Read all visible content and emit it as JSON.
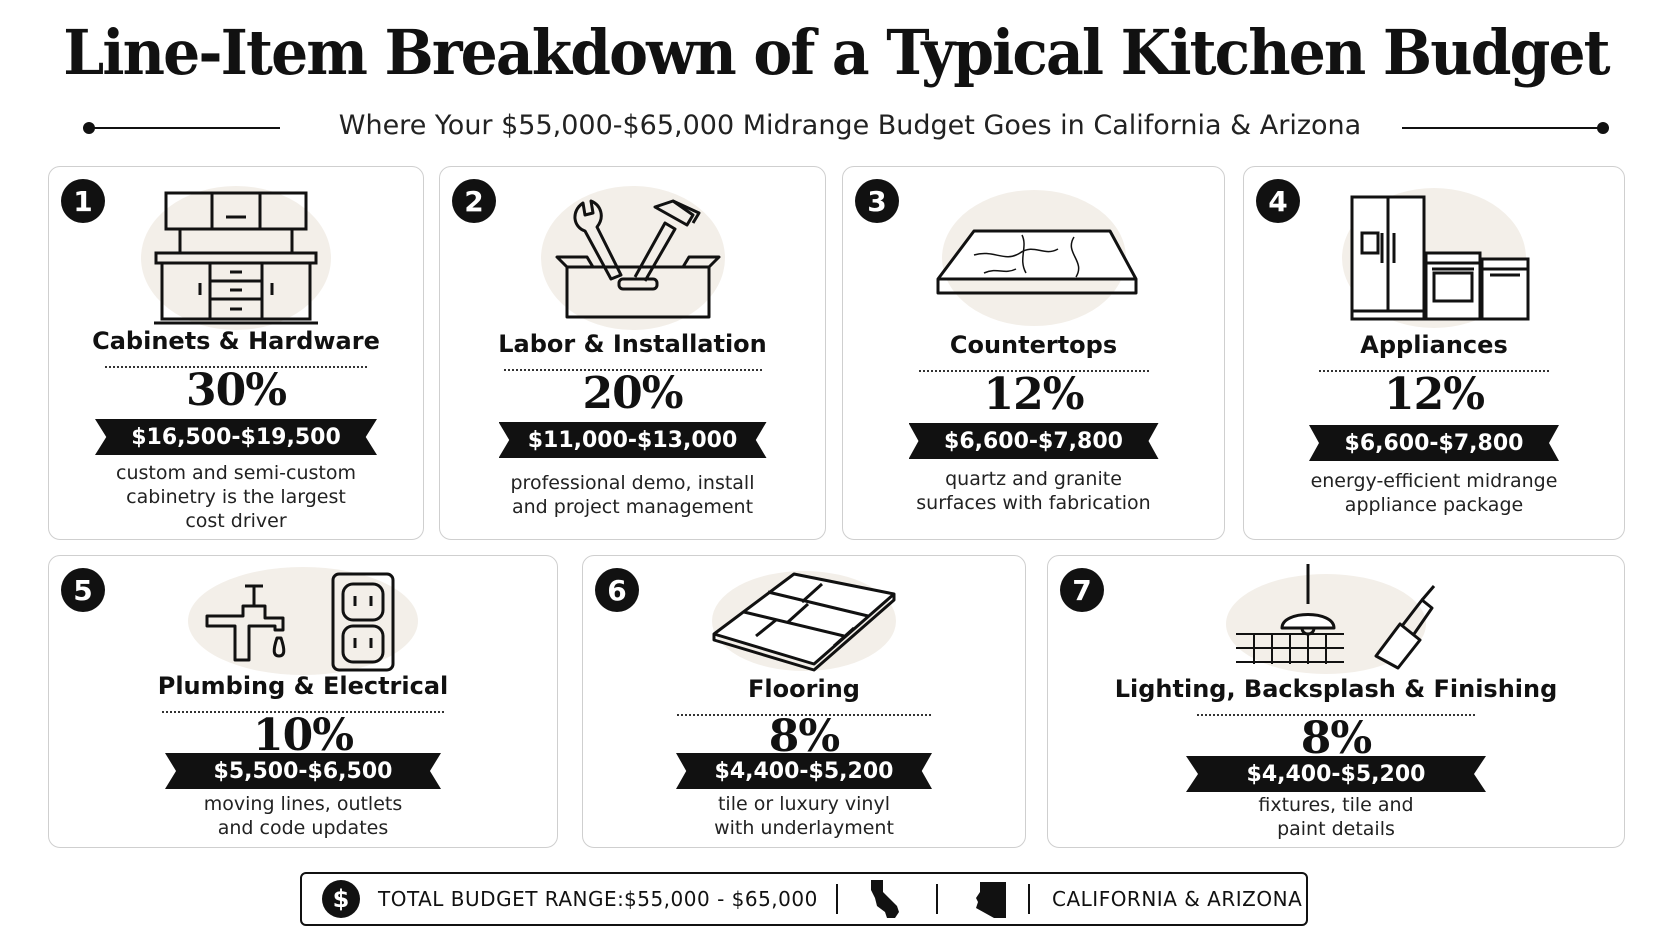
{
  "title": "Line-Item Breakdown of a Typical Kitchen Budget",
  "subtitle": "Where Your $55,000-$65,000 Midrange Budget Goes in California & Arizona",
  "items": [
    {
      "number": "1",
      "name": "Cabinets & Hardware",
      "percent": "30%",
      "range": "$16,500-$19,500",
      "description": "custom and semi-custom\ncabinetry is the largest\ncost driver",
      "icon": "cabinets-icon"
    },
    {
      "number": "2",
      "name": "Labor & Installation",
      "percent": "20%",
      "range": "$11,000-$13,000",
      "description": "professional demo, install\nand project management",
      "icon": "toolbox-icon"
    },
    {
      "number": "3",
      "name": "Countertops",
      "percent": "12%",
      "range": "$6,600-$7,800",
      "description": "quartz and granite\nsurfaces with fabrication",
      "icon": "countertop-slab-icon"
    },
    {
      "number": "4",
      "name": "Appliances",
      "percent": "12%",
      "range": "$6,600-$7,800",
      "description": "energy-efficient midrange\nappliance package",
      "icon": "appliances-icon"
    },
    {
      "number": "5",
      "name": "Plumbing & Electrical",
      "percent": "10%",
      "range": "$5,500-$6,500",
      "description": "moving lines, outlets\nand code updates",
      "icon": "faucet-outlet-icon"
    },
    {
      "number": "6",
      "name": "Flooring",
      "percent": "8%",
      "range": "$4,400-$5,200",
      "description": "tile or luxury vinyl\nwith underlayment",
      "icon": "floor-planks-icon"
    },
    {
      "number": "7",
      "name": "Lighting, Backsplash & Finishing",
      "percent": "8%",
      "range": "$4,400-$5,200",
      "description": "fixtures, tile and\npaint details",
      "icon": "pendant-brush-icon"
    }
  ],
  "footer": {
    "currency_symbol": "$",
    "total_label": "TOTAL BUDGET RANGE:",
    "total_value": "$55,000 - $65,000",
    "states": "CALIFORNIA & ARIZONA"
  },
  "colors": {
    "ink": "#111111",
    "blob": "#f3efe9",
    "border": "#cfcfcf"
  }
}
